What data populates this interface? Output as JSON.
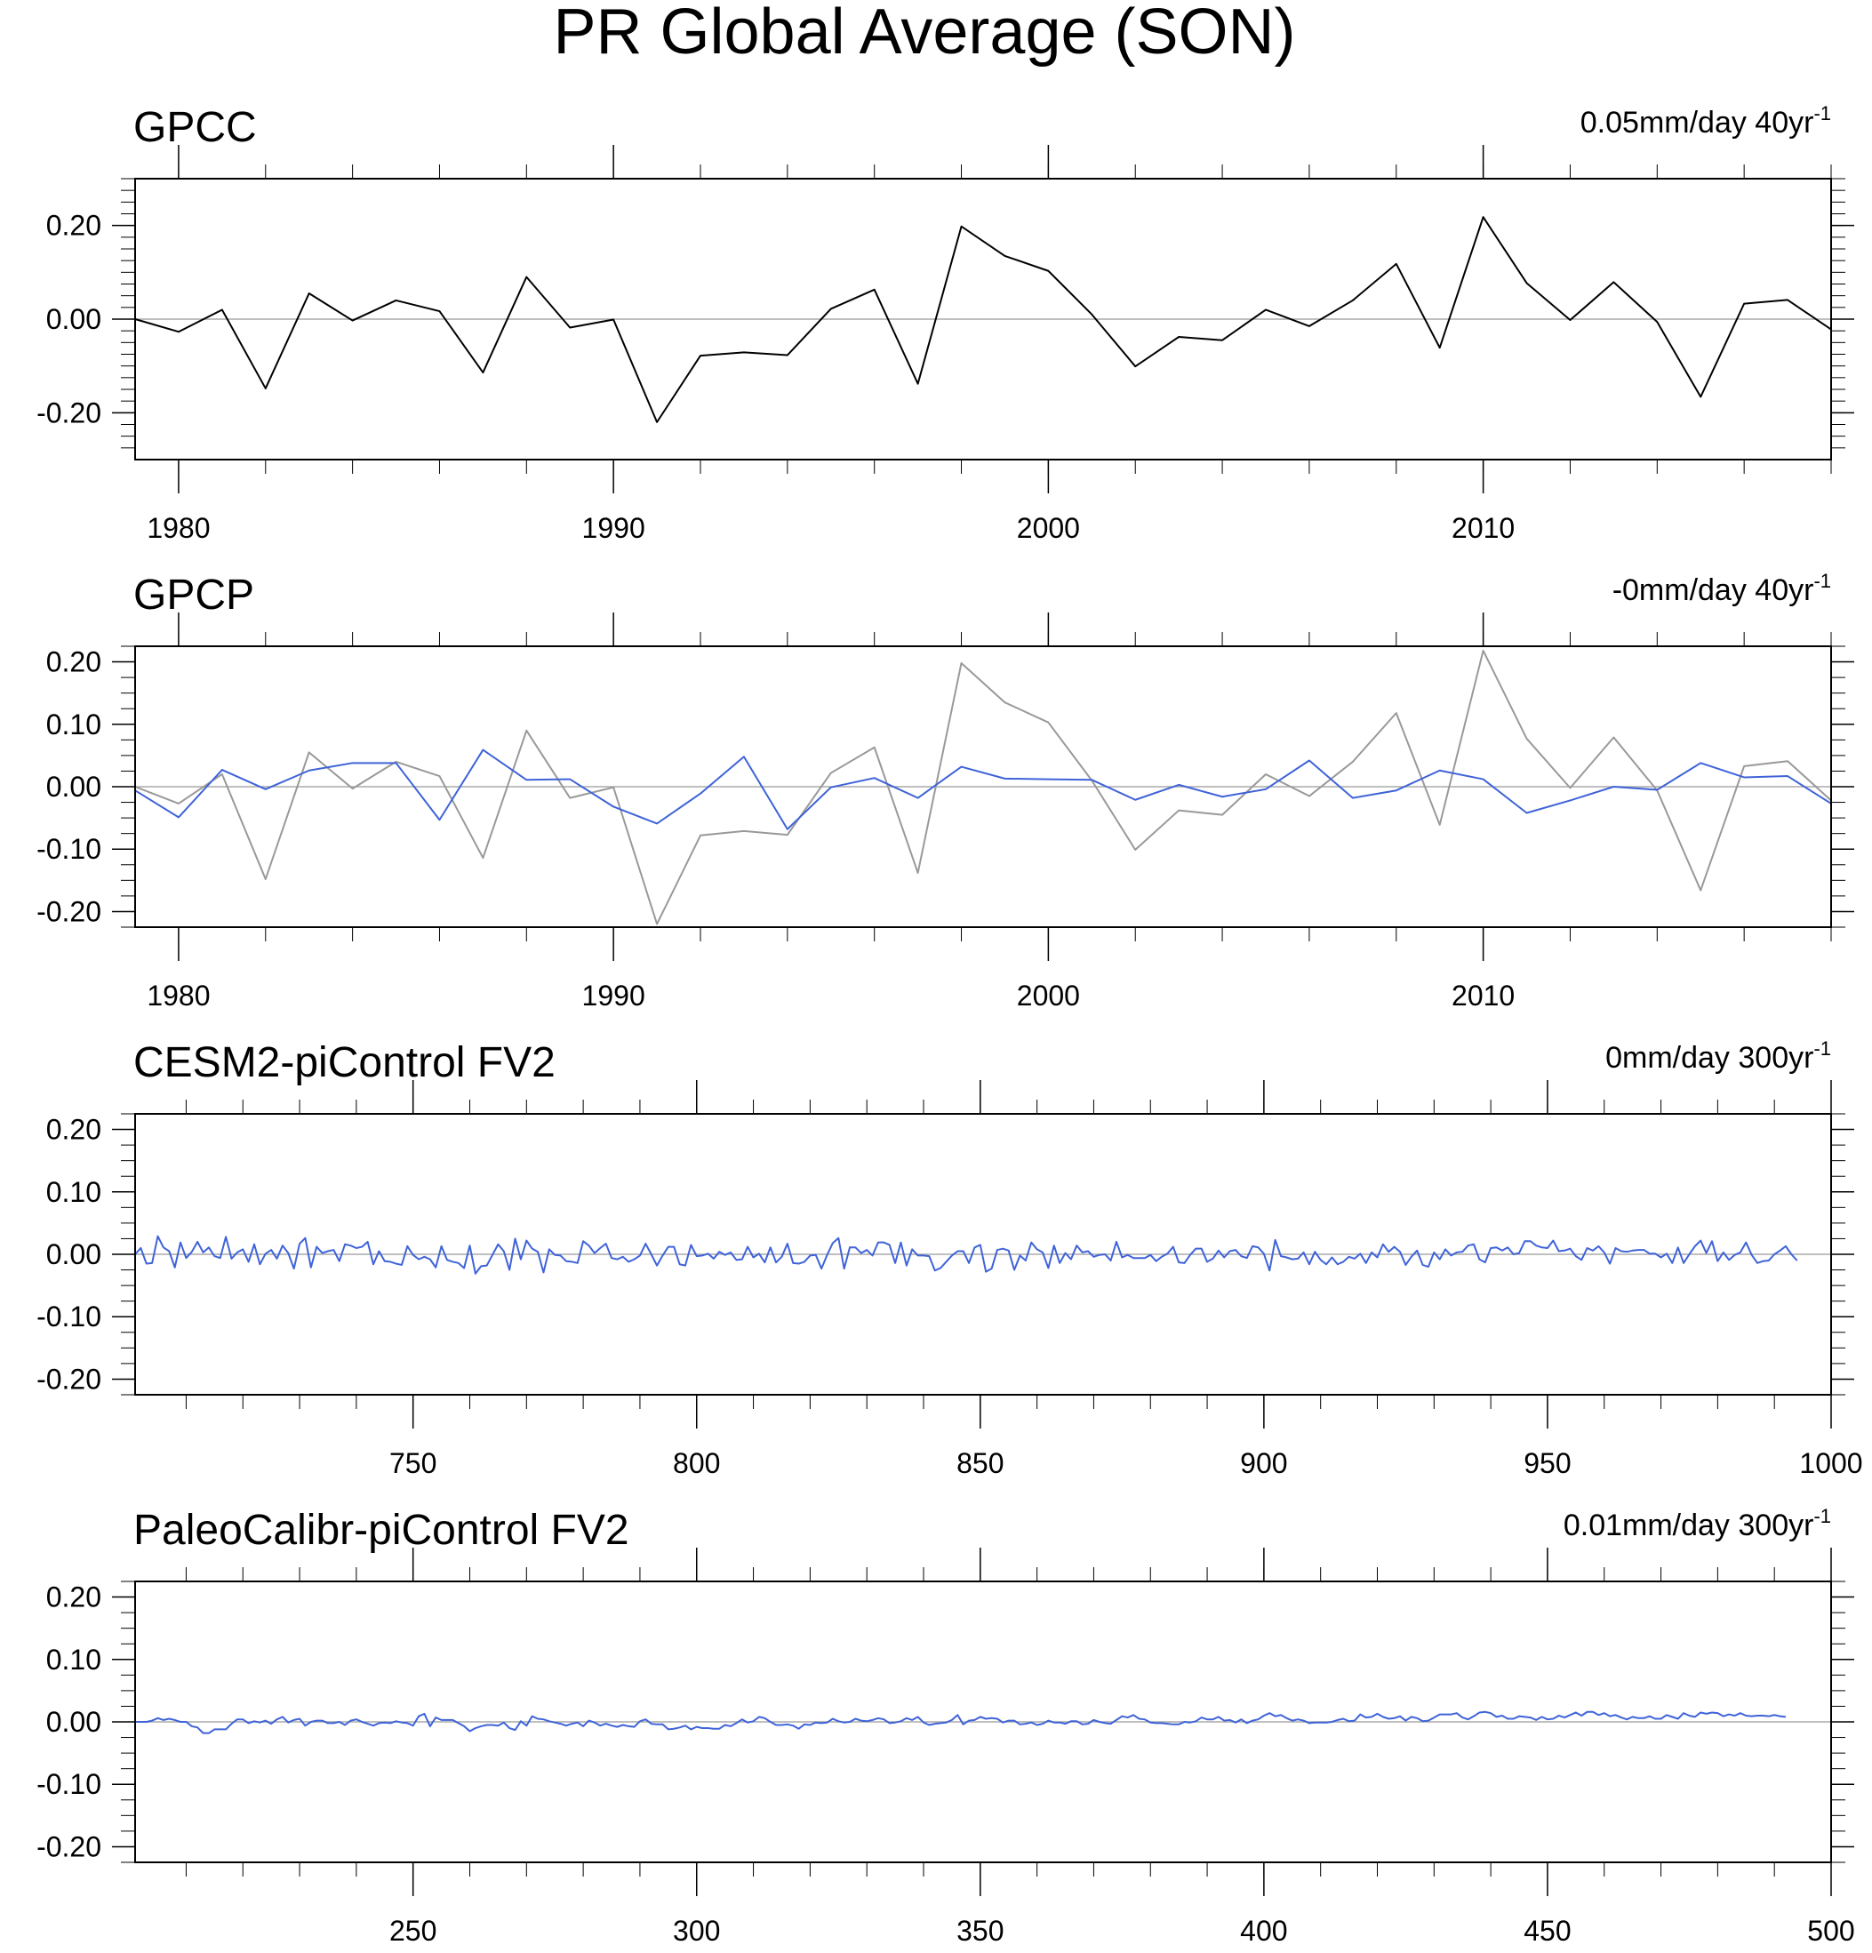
{
  "figure_title": "PR Global Average (SON)",
  "colors": {
    "observed": "#000000",
    "reference": "#999999",
    "model": "#3f63d8",
    "zero_line": "#aaaaaa",
    "frame": "#000000"
  },
  "chart_data": [
    {
      "type": "line",
      "title": "GPCC",
      "trend_value": "0.05mm/day 40yr",
      "trend_exp": "-1",
      "xlim": [
        1979,
        2018
      ],
      "ylim": [
        -0.3,
        0.3
      ],
      "x_ticks": [
        1980,
        1990,
        2000,
        2010
      ],
      "x_tick_labels": [
        "1980",
        "1990",
        "2000",
        "2010"
      ],
      "y_ticks": [
        -0.2,
        0.0,
        0.2
      ],
      "y_tick_labels": [
        "-0.20",
        "0.00",
        "0.20"
      ],
      "x_start": 1979,
      "series": [
        {
          "values": [
            0.0,
            -0.027,
            0.02,
            -0.148,
            0.055,
            -0.003,
            0.04,
            0.017,
            -0.114,
            0.09,
            -0.018,
            -0.001,
            -0.22,
            -0.078,
            -0.071,
            -0.077,
            0.022,
            0.063,
            -0.138,
            0.198,
            0.135,
            0.103,
            0.01,
            -0.101,
            -0.038,
            -0.045,
            0.02,
            -0.015,
            0.04,
            0.118,
            -0.061,
            0.218,
            0.077,
            -0.002,
            0.079,
            -0.006,
            -0.166,
            0.033,
            0.041,
            -0.022
          ]
        }
      ]
    },
    {
      "type": "line",
      "title": "GPCP",
      "trend_value": "-0mm/day 40yr",
      "trend_exp": "-1",
      "xlim": [
        1979,
        2018
      ],
      "ylim": [
        -0.225,
        0.225
      ],
      "x_ticks": [
        1980,
        1990,
        2000,
        2010
      ],
      "x_tick_labels": [
        "1980",
        "1990",
        "2000",
        "2010"
      ],
      "y_ticks": [
        -0.2,
        -0.1,
        0.0,
        0.1,
        0.2
      ],
      "y_tick_labels": [
        "-0.20",
        "-0.10",
        "0.00",
        "0.10",
        "0.20"
      ],
      "x_start": 1979,
      "series": [
        {
          "role": "reference",
          "values": [
            0.0,
            -0.027,
            0.02,
            -0.148,
            0.055,
            -0.003,
            0.04,
            0.017,
            -0.114,
            0.09,
            -0.018,
            -0.001,
            -0.22,
            -0.078,
            -0.071,
            -0.077,
            0.022,
            0.063,
            -0.138,
            0.198,
            0.135,
            0.103,
            0.01,
            -0.101,
            -0.038,
            -0.045,
            0.02,
            -0.015,
            0.04,
            0.118,
            -0.061,
            0.218,
            0.077,
            -0.002,
            0.079,
            -0.006,
            -0.166,
            0.033,
            0.041,
            -0.022
          ]
        },
        {
          "role": "primary",
          "values": [
            -0.006,
            -0.049,
            0.027,
            -0.004,
            0.026,
            0.038,
            0.038,
            -0.053,
            0.059,
            0.011,
            0.012,
            -0.032,
            -0.059,
            -0.011,
            0.048,
            -0.068,
            -0.001,
            0.014,
            -0.018,
            0.032,
            0.013,
            0.012,
            0.011,
            -0.021,
            0.003,
            -0.016,
            -0.004,
            0.042,
            -0.018,
            -0.006,
            0.026,
            0.012,
            -0.042,
            -0.022,
            0.0,
            -0.005,
            0.038,
            0.015,
            0.017,
            -0.027
          ]
        }
      ]
    },
    {
      "type": "line",
      "title": "CESM2-piControl FV2",
      "trend_value": "0mm/day 300yr",
      "trend_exp": "-1",
      "xlim": [
        701,
        1000
      ],
      "ylim": [
        -0.225,
        0.225
      ],
      "x_ticks": [
        750,
        800,
        850,
        900,
        950,
        1000
      ],
      "x_tick_labels": [
        "750",
        "800",
        "850",
        "900",
        "950",
        "1000"
      ],
      "y_ticks": [
        -0.2,
        -0.1,
        0.0,
        0.1,
        0.2
      ],
      "y_tick_labels": [
        "-0.20",
        "-0.10",
        "0.00",
        "0.10",
        "0.20"
      ],
      "x_start": 701,
      "series": [
        {
          "values": [
            0.0,
            0.01,
            -0.015,
            -0.014,
            0.029,
            0.011,
            0.005,
            -0.021,
            0.019,
            -0.006,
            0.004,
            0.02,
            0.003,
            0.011,
            -0.003,
            -0.006,
            0.028,
            -0.007,
            0.003,
            0.008,
            -0.012,
            0.016,
            -0.016,
            0.001,
            0.007,
            -0.007,
            0.014,
            0.002,
            -0.023,
            0.017,
            0.026,
            -0.021,
            0.012,
            0.002,
            0.005,
            0.007,
            -0.011,
            0.016,
            0.014,
            0.01,
            0.012,
            0.02,
            -0.016,
            0.005,
            -0.011,
            -0.012,
            -0.015,
            -0.017,
            0.013,
            -0.001,
            -0.008,
            -0.004,
            -0.008,
            -0.021,
            0.013,
            -0.009,
            -0.012,
            -0.014,
            -0.022,
            0.014,
            -0.031,
            -0.019,
            -0.018,
            -0.001,
            0.016,
            0.005,
            -0.025,
            0.025,
            -0.008,
            0.022,
            0.009,
            0.004,
            -0.029,
            0.008,
            -0.001,
            -0.002,
            -0.011,
            -0.012,
            -0.014,
            0.021,
            0.014,
            0.002,
            0.01,
            0.017,
            -0.006,
            -0.008,
            -0.004,
            -0.012,
            -0.008,
            -0.002,
            0.017,
            0.0,
            -0.018,
            -0.002,
            0.012,
            0.012,
            -0.016,
            -0.018,
            0.015,
            -0.003,
            -0.002,
            0.001,
            -0.007,
            0.004,
            -0.001,
            0.003,
            -0.009,
            -0.008,
            0.012,
            -0.005,
            0.001,
            -0.013,
            0.011,
            -0.013,
            -0.004,
            0.017,
            -0.014,
            -0.015,
            -0.012,
            -0.002,
            -0.001,
            -0.023,
            -0.001,
            0.018,
            0.026,
            -0.023,
            0.011,
            0.011,
            0.002,
            0.007,
            -0.002,
            0.019,
            0.019,
            0.015,
            -0.014,
            0.019,
            -0.018,
            0.008,
            -0.002,
            -0.002,
            -0.003,
            -0.026,
            -0.022,
            -0.012,
            -0.002,
            0.005,
            0.005,
            -0.014,
            0.011,
            0.015,
            -0.028,
            -0.023,
            0.007,
            0.009,
            0.006,
            -0.025,
            -0.002,
            -0.01,
            0.019,
            0.008,
            0.003,
            -0.022,
            0.014,
            -0.014,
            0.002,
            -0.008,
            0.014,
            0.003,
            0.005,
            -0.004,
            -0.001,
            0.0,
            -0.01,
            0.02,
            -0.005,
            -0.001,
            -0.006,
            -0.006,
            -0.006,
            -0.001,
            -0.011,
            -0.004,
            0.001,
            0.012,
            -0.013,
            -0.014,
            -0.001,
            0.009,
            0.009,
            -0.012,
            -0.007,
            0.006,
            -0.005,
            0.005,
            0.007,
            -0.003,
            -0.006,
            0.013,
            0.011,
            0.001,
            -0.026,
            0.023,
            -0.003,
            -0.005,
            -0.008,
            -0.007,
            0.003,
            -0.016,
            0.004,
            -0.009,
            -0.016,
            -0.005,
            -0.016,
            -0.012,
            -0.004,
            -0.007,
            0.001,
            -0.014,
            0.003,
            -0.005,
            0.016,
            0.004,
            0.012,
            0.004,
            -0.017,
            -0.004,
            0.006,
            -0.017,
            -0.02,
            0.003,
            -0.008,
            0.008,
            -0.002,
            0.003,
            0.004,
            0.014,
            0.016,
            -0.008,
            -0.013,
            0.01,
            0.011,
            0.006,
            0.011,
            0.0,
            0.002,
            0.021,
            0.021,
            0.014,
            0.011,
            0.01,
            0.022,
            0.005,
            0.006,
            0.009,
            -0.003,
            -0.009,
            0.01,
            0.006,
            0.013,
            0.003,
            -0.015,
            0.01,
            0.005,
            0.004,
            0.006,
            0.007,
            0.007,
            0.001,
            0.001,
            -0.005,
            0.001,
            -0.014,
            0.011,
            -0.014,
            0.0,
            0.013,
            0.022,
            0.002,
            0.021,
            -0.011,
            0.003,
            -0.009,
            -0.001,
            0.003,
            0.019,
            -0.001,
            -0.014,
            -0.011,
            -0.01,
            0.0,
            0.006,
            0.013,
            0.0,
            -0.01
          ]
        }
      ]
    },
    {
      "type": "line",
      "title": "PaleoCalibr-piControl FV2",
      "trend_value": "0.01mm/day 300yr",
      "trend_exp": "-1",
      "xlim": [
        201,
        500
      ],
      "ylim": [
        -0.225,
        0.225
      ],
      "x_ticks": [
        250,
        300,
        350,
        400,
        450,
        500
      ],
      "x_tick_labels": [
        "250",
        "300",
        "350",
        "400",
        "450",
        "500"
      ],
      "y_ticks": [
        -0.2,
        -0.1,
        0.0,
        0.1,
        0.2
      ],
      "y_tick_labels": [
        "-0.20",
        "-0.10",
        "0.00",
        "0.10",
        "0.20"
      ],
      "x_start": 201,
      "series": [
        {
          "values": [
            0.0,
            0.0,
            0.0,
            0.002,
            0.006,
            0.003,
            0.005,
            0.003,
            0.0,
            0.0,
            -0.007,
            -0.009,
            -0.018,
            -0.018,
            -0.012,
            -0.012,
            -0.012,
            -0.003,
            0.004,
            0.004,
            -0.002,
            0.001,
            -0.001,
            0.002,
            -0.003,
            0.004,
            0.008,
            -0.001,
            0.003,
            0.005,
            -0.006,
            0.0,
            0.002,
            0.002,
            -0.002,
            -0.002,
            0.0,
            -0.005,
            0.002,
            0.004,
            0.0,
            -0.003,
            -0.006,
            -0.002,
            -0.001,
            -0.002,
            0.001,
            -0.001,
            -0.002,
            -0.006,
            0.009,
            0.013,
            -0.007,
            0.007,
            0.003,
            0.003,
            0.003,
            -0.002,
            -0.007,
            -0.015,
            -0.01,
            -0.007,
            -0.005,
            -0.005,
            -0.006,
            -0.001,
            -0.01,
            -0.013,
            0.001,
            -0.006,
            0.009,
            0.005,
            0.004,
            0.001,
            -0.001,
            -0.003,
            -0.006,
            -0.003,
            -0.001,
            -0.007,
            0.002,
            -0.001,
            -0.006,
            -0.003,
            -0.006,
            -0.008,
            -0.005,
            -0.007,
            -0.008,
            0.001,
            0.004,
            -0.003,
            -0.004,
            -0.004,
            -0.012,
            -0.011,
            -0.009,
            -0.006,
            -0.012,
            -0.008,
            -0.01,
            -0.01,
            -0.011,
            -0.011,
            -0.005,
            -0.007,
            -0.002,
            0.004,
            -0.001,
            0.001,
            0.008,
            0.006,
            0.0,
            -0.005,
            -0.005,
            -0.004,
            -0.006,
            -0.011,
            -0.004,
            -0.005,
            -0.001,
            -0.002,
            -0.001,
            0.005,
            0.001,
            -0.001,
            0.0,
            0.005,
            0.002,
            0.001,
            0.003,
            0.006,
            0.004,
            -0.002,
            -0.001,
            0.001,
            0.006,
            0.003,
            0.008,
            -0.001,
            -0.005,
            -0.003,
            -0.002,
            -0.001,
            0.003,
            0.011,
            -0.004,
            0.002,
            0.003,
            0.008,
            0.005,
            0.006,
            0.005,
            -0.001,
            0.002,
            0.002,
            -0.004,
            -0.003,
            -0.001,
            -0.005,
            -0.003,
            0.002,
            -0.001,
            -0.001,
            -0.003,
            0.001,
            0.001,
            -0.004,
            -0.003,
            0.003,
            0.0,
            -0.002,
            -0.003,
            0.003,
            0.009,
            0.007,
            0.011,
            0.005,
            0.004,
            -0.001,
            -0.002,
            -0.002,
            -0.003,
            -0.004,
            -0.004,
            0.0,
            -0.001,
            0.001,
            0.007,
            0.004,
            0.004,
            0.008,
            0.002,
            0.003,
            -0.001,
            0.004,
            -0.002,
            0.002,
            0.004,
            0.01,
            0.014,
            0.009,
            0.011,
            0.006,
            0.002,
            0.004,
            0.002,
            -0.002,
            -0.001,
            -0.001,
            -0.001,
            0.0,
            0.003,
            0.005,
            0.001,
            0.002,
            0.012,
            0.007,
            0.008,
            0.013,
            0.008,
            0.005,
            0.006,
            0.009,
            0.002,
            0.008,
            0.006,
            0.001,
            0.002,
            0.007,
            0.012,
            0.012,
            0.012,
            0.014,
            0.007,
            0.004,
            0.009,
            0.015,
            0.016,
            0.014,
            0.008,
            0.01,
            0.005,
            0.005,
            0.009,
            0.008,
            0.007,
            0.003,
            0.008,
            0.004,
            0.005,
            0.01,
            0.007,
            0.011,
            0.015,
            0.01,
            0.016,
            0.016,
            0.011,
            0.014,
            0.009,
            0.011,
            0.007,
            0.004,
            0.008,
            0.006,
            0.006,
            0.009,
            0.005,
            0.005,
            0.011,
            0.008,
            0.005,
            0.014,
            0.01,
            0.008,
            0.015,
            0.013,
            0.015,
            0.014,
            0.009,
            0.012,
            0.01,
            0.014,
            0.01,
            0.009,
            0.01,
            0.01,
            0.009,
            0.011,
            0.009,
            0.008
          ]
        }
      ]
    }
  ]
}
